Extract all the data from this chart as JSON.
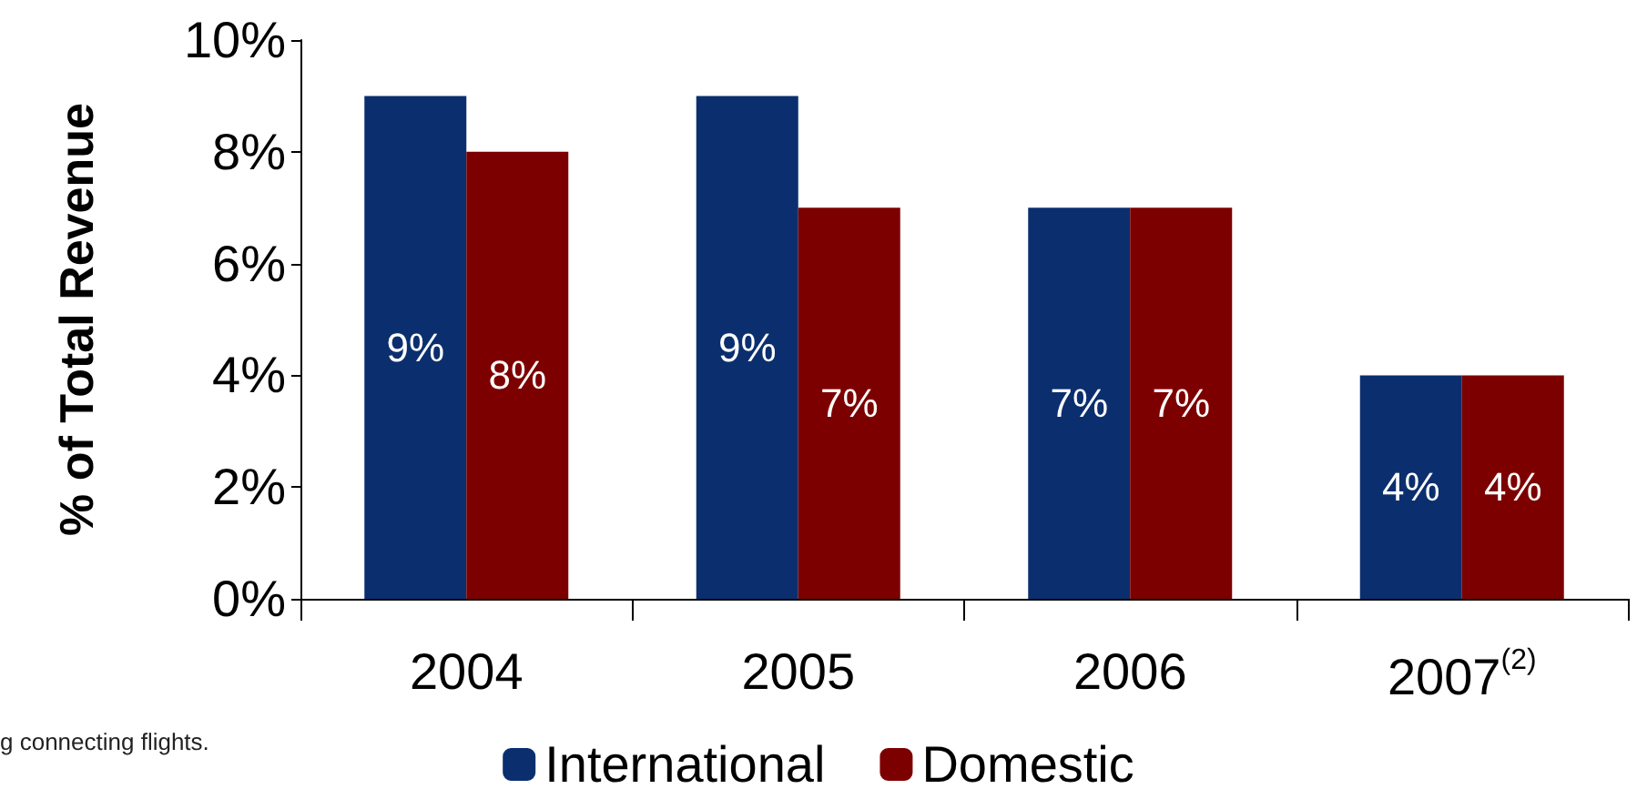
{
  "chart_data": {
    "type": "bar",
    "ylabel": "% of Total Revenue",
    "categories": [
      "2004",
      "2005",
      "2006",
      "2007$^{(2)}$"
    ],
    "series": [
      {
        "name": "International",
        "color": "#0b2f6e",
        "values": [
          9,
          9,
          7,
          4
        ],
        "value_labels": [
          "9%",
          "9%",
          "7%",
          "4%"
        ]
      },
      {
        "name": "Domestic",
        "color": "#7d0000",
        "values": [
          8,
          7,
          7,
          4
        ],
        "value_labels": [
          "8%",
          "7%",
          "7%",
          "4%"
        ]
      }
    ],
    "ylim": [
      0,
      10
    ],
    "yticks": [
      {
        "value": 0,
        "label": "0%"
      },
      {
        "value": 2,
        "label": "2%"
      },
      {
        "value": 4,
        "label": "4%"
      },
      {
        "value": 6,
        "label": "6%"
      },
      {
        "value": 8,
        "label": "8%"
      },
      {
        "value": 10,
        "label": "10%"
      }
    ],
    "grid": false,
    "legend": "bottom",
    "annotations": [
      "g connecting flights."
    ]
  }
}
